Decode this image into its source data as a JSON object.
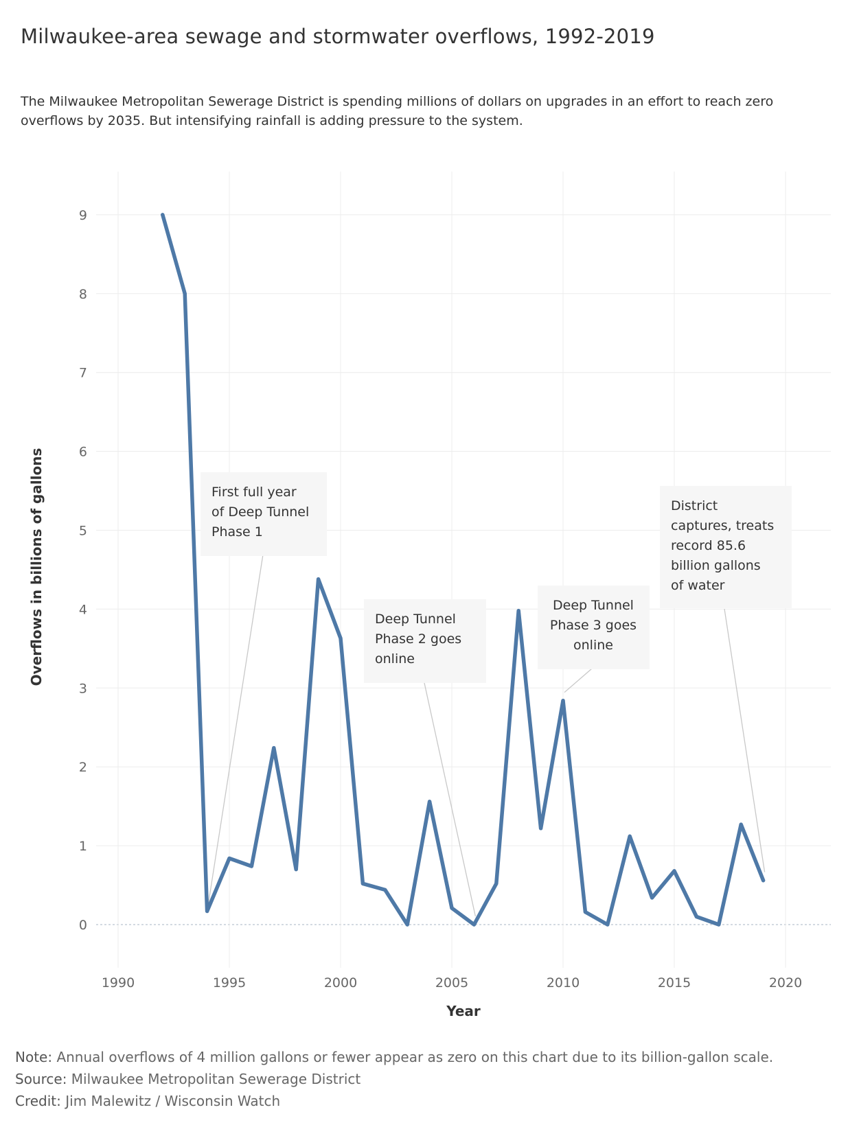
{
  "title": "Milwaukee-area sewage and stormwater overflows, 1992-2019",
  "subtitle": "The Milwaukee Metropolitan Sewerage District is spending millions of dollars on upgrades in an effort to reach zero overflows by 2035. But intensifying rainfall is adding pressure to the system.",
  "chart_data": {
    "type": "line",
    "xlabel": "Year",
    "ylabel": "Overflows in billions of gallons",
    "xlim": [
      1989.5,
      2023
    ],
    "ylim": [
      -0.5,
      9.5
    ],
    "x_ticks": [
      1990,
      1995,
      2000,
      2005,
      2010,
      2015,
      2020
    ],
    "y_ticks": [
      0,
      1,
      2,
      3,
      4,
      5,
      6,
      7,
      8,
      9
    ],
    "grid": true,
    "line_color": "#4e79a7",
    "series": [
      {
        "x": [
          1992,
          1993,
          1994,
          1995,
          1996,
          1997,
          1998,
          1999,
          2000,
          2001,
          2002,
          2003,
          2004,
          2005,
          2006,
          2007,
          2008,
          2009,
          2010,
          2011,
          2012,
          2013,
          2014,
          2015,
          2016,
          2017,
          2018,
          2019
        ],
        "values": [
          9.0,
          8.0,
          0.17,
          0.84,
          0.74,
          2.24,
          0.7,
          4.38,
          3.63,
          0.52,
          0.44,
          0.0,
          1.56,
          0.21,
          0.0,
          0.52,
          3.98,
          1.22,
          2.84,
          0.16,
          0.0,
          1.12,
          0.34,
          0.68,
          0.1,
          0.0,
          1.27,
          0.56
        ]
      }
    ],
    "annotations": [
      {
        "lines": [
          "First full year",
          "of Deep Tunnel",
          "Phase 1"
        ],
        "year": 1994,
        "value": 0.17,
        "align": "left"
      },
      {
        "lines": [
          "Deep Tunnel",
          "Phase 2 goes",
          "online"
        ],
        "year": 2006,
        "value": 0.0,
        "align": "left"
      },
      {
        "lines": [
          "Deep Tunnel",
          "Phase 3 goes",
          "online"
        ],
        "year": 2010,
        "value": 2.84,
        "align": "center"
      },
      {
        "lines": [
          "District",
          "captures, treats",
          "record 85.6",
          "billion gallons",
          "of water"
        ],
        "year": 2019,
        "value": 0.56,
        "align": "left"
      }
    ]
  },
  "notes": {
    "note_label": "Note:",
    "note_text": " Annual overflows of 4 million gallons or fewer appear as zero on this chart due to its billion-gallon scale.",
    "source_label": "Source:",
    "source_text": " Milwaukee Metropolitan Sewerage District",
    "credit_label": "Credit:",
    "credit_text": " Jim Malewitz / Wisconsin Watch"
  }
}
